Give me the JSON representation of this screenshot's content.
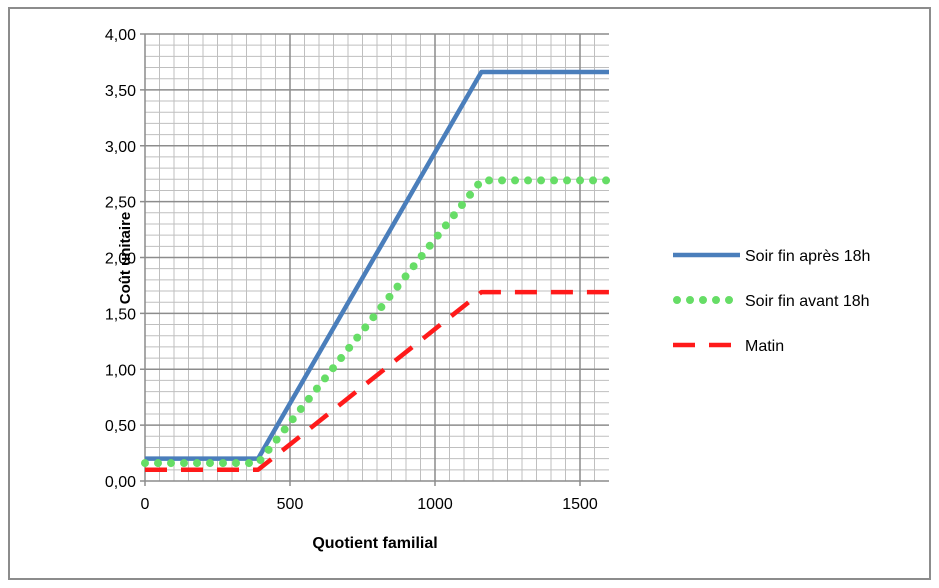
{
  "chart_data": {
    "type": "line",
    "title": "",
    "xlabel": "Quotient familial",
    "ylabel": "Coût unitaire",
    "xlim": [
      0,
      1600
    ],
    "ylim": [
      0,
      4
    ],
    "x_ticks": [
      0,
      500,
      1000,
      1500
    ],
    "x_tick_labels": [
      "0",
      "500",
      "1000",
      "1500"
    ],
    "y_ticks": [
      0,
      0.5,
      1,
      1.5,
      2,
      2.5,
      3,
      3.5,
      4
    ],
    "y_tick_labels": [
      "0,00",
      "0,50",
      "1,00",
      "1,50",
      "2,00",
      "2,50",
      "3,00",
      "3,50",
      "4,00"
    ],
    "grid": true,
    "legend_position": "right",
    "series": [
      {
        "name": "Soir fin après 18h",
        "color": "#4a7ebb",
        "style": "solid",
        "x": [
          0,
          390,
          1160,
          1600
        ],
        "y": [
          0.2,
          0.2,
          3.66,
          3.66
        ]
      },
      {
        "name": "Soir fin avant 18h",
        "color": "#66dd66",
        "style": "dotted",
        "x": [
          0,
          390,
          1160,
          1600
        ],
        "y": [
          0.16,
          0.16,
          2.69,
          2.69
        ]
      },
      {
        "name": "Matin",
        "color": "#ff1a1a",
        "style": "dashed",
        "x": [
          0,
          390,
          1160,
          1600
        ],
        "y": [
          0.1,
          0.1,
          1.69,
          1.69
        ]
      }
    ]
  }
}
